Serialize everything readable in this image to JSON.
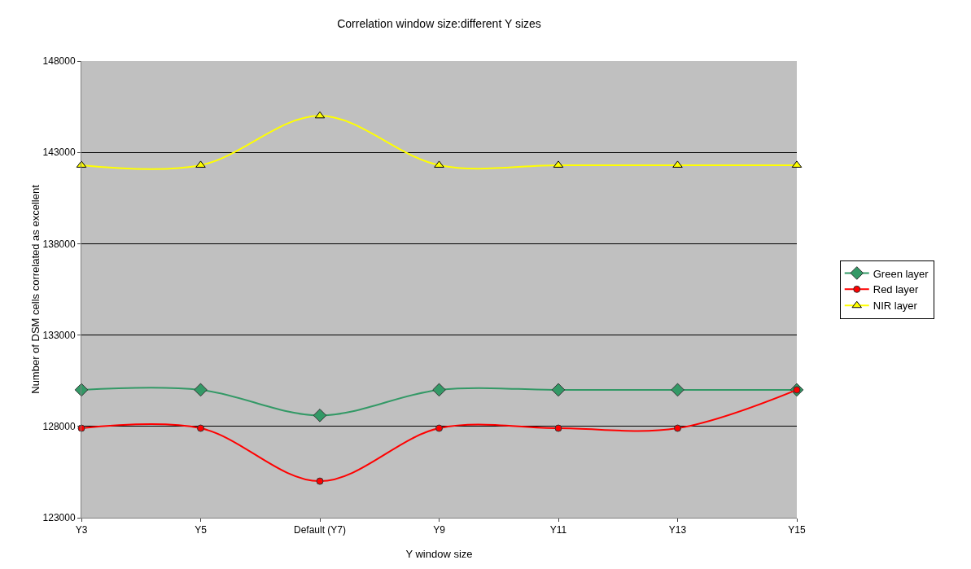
{
  "chart_data": {
    "type": "line",
    "title": "Correlation window size:different Y sizes",
    "xlabel": "Y window size",
    "ylabel": "Number of DSM cells correlated as excellent",
    "categories": [
      "Y3",
      "Y5",
      "Default (Y7)",
      "Y9",
      "Y11",
      "Y13",
      "Y15"
    ],
    "series": [
      {
        "name": "Green layer",
        "color": "#339966",
        "marker": "diamond",
        "values": [
          130000,
          130000,
          128600,
          130000,
          130000,
          130000,
          130000
        ]
      },
      {
        "name": "Red layer",
        "color": "#ff0000",
        "marker": "circle",
        "values": [
          127900,
          127900,
          125000,
          127900,
          127900,
          127900,
          130000
        ]
      },
      {
        "name": "NIR layer",
        "color": "#ffff00",
        "marker": "triangle",
        "values": [
          142300,
          142300,
          145000,
          142300,
          142300,
          142300,
          142300
        ]
      }
    ],
    "ylim": [
      123000,
      148000
    ],
    "yticks": [
      123000,
      128000,
      133000,
      138000,
      143000,
      148000
    ],
    "grid": "y",
    "legend": "right",
    "line_style": "solid"
  }
}
